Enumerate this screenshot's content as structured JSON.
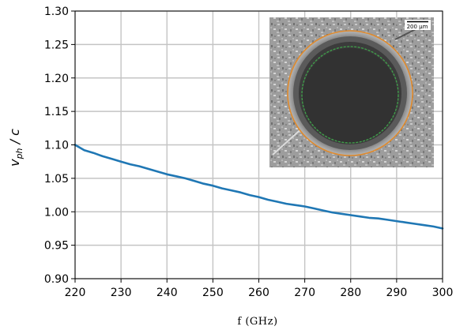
{
  "chart_data": {
    "type": "line",
    "title": "",
    "xlabel": "f (GHz)",
    "ylabel_main": "v",
    "ylabel_sub": "ph",
    "ylabel_rest": " / c",
    "xlim": [
      220,
      300
    ],
    "ylim": [
      0.9,
      1.3
    ],
    "xticks": [
      220,
      230,
      240,
      250,
      260,
      270,
      280,
      290,
      300
    ],
    "yticks": [
      0.9,
      0.95,
      1.0,
      1.05,
      1.1,
      1.15,
      1.2,
      1.25,
      1.3
    ],
    "grid": true,
    "series": [
      {
        "color": "#1f77b4",
        "x": [
          220,
          222,
          224,
          226,
          228,
          230,
          232,
          234,
          236,
          238,
          240,
          242,
          244,
          246,
          248,
          250,
          252,
          254,
          256,
          258,
          260,
          262,
          264,
          266,
          268,
          270,
          272,
          274,
          276,
          278,
          280,
          282,
          284,
          286,
          288,
          290,
          292,
          294,
          296,
          298,
          300
        ],
        "y": [
          1.1,
          1.092,
          1.088,
          1.083,
          1.079,
          1.075,
          1.071,
          1.068,
          1.064,
          1.06,
          1.056,
          1.053,
          1.05,
          1.046,
          1.042,
          1.039,
          1.035,
          1.032,
          1.029,
          1.025,
          1.022,
          1.018,
          1.015,
          1.012,
          1.01,
          1.008,
          1.005,
          1.002,
          0.999,
          0.997,
          0.995,
          0.993,
          0.991,
          0.99,
          0.988,
          0.986,
          0.984,
          0.982,
          0.98,
          0.978,
          0.975
        ]
      }
    ],
    "inset": {
      "scalebar_label": "200 µm"
    }
  }
}
